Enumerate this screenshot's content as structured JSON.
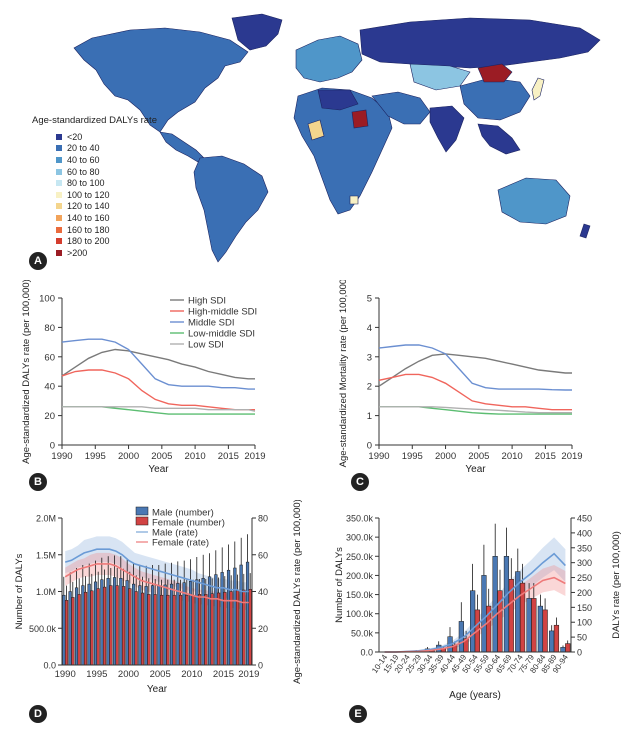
{
  "panels": {
    "A": "A",
    "B": "B",
    "C": "C",
    "D": "D",
    "E": "E"
  },
  "colors": {
    "ocean": "#ffffff",
    "landDark": "#2e3d97",
    "landMid": "#3a6fb4",
    "landLight": "#6fb5dc",
    "landPale": "#a9d7ea",
    "yellow": "#f6df8f",
    "red": "#b5262b",
    "high": "#7a7a7a",
    "highMiddle": "#f0655c",
    "middle": "#6b8fd1",
    "lowMiddle": "#5cbd72",
    "low": "#b0b0b0",
    "maleBar": "#4a78b3",
    "femaleBar": "#d14343",
    "maleRate": "#8fb3dd",
    "femaleRate": "#f08d8d"
  },
  "map_legend": {
    "title": "Age-standardized DALYs rate",
    "items": [
      {
        "label": "<20",
        "color": "#2b3990"
      },
      {
        "label": "20 to 40",
        "color": "#3a6fb4"
      },
      {
        "label": "40 to 60",
        "color": "#4f96c9"
      },
      {
        "label": "60 to 80",
        "color": "#8cc5e2"
      },
      {
        "label": "80 to 100",
        "color": "#c6e7f2"
      },
      {
        "label": "100 to 120",
        "color": "#f8f1c4"
      },
      {
        "label": "120 to 140",
        "color": "#f4d58d"
      },
      {
        "label": "140 to 160",
        "color": "#f2a35a"
      },
      {
        "label": "160 to 180",
        "color": "#ea6b3d"
      },
      {
        "label": "180 to 200",
        "color": "#d43d2e"
      },
      {
        "label": ">200",
        "color": "#9b1c24"
      }
    ]
  },
  "chart_data": [
    {
      "id": "B",
      "type": "line",
      "xlabel": "Year",
      "ylabel": "Age-standardized DALYs rate (per 100,000)",
      "xlim": [
        1990,
        2019
      ],
      "ylim": [
        0,
        100
      ],
      "xticks": [
        1990,
        1995,
        2000,
        2005,
        2010,
        2015,
        2019
      ],
      "yticks": [
        0,
        20,
        40,
        60,
        80,
        100
      ],
      "x": [
        1990,
        1992,
        1994,
        1996,
        1998,
        2000,
        2002,
        2004,
        2006,
        2008,
        2010,
        2012,
        2014,
        2016,
        2018,
        2019
      ],
      "series": [
        {
          "name": "High SDI",
          "color": "#7a7a7a",
          "values": [
            47,
            53,
            59,
            63,
            65,
            64,
            62,
            60,
            58,
            55,
            53,
            50,
            48,
            46,
            45,
            45
          ]
        },
        {
          "name": "High-middle SDI",
          "color": "#f0655c",
          "values": [
            47,
            50,
            51,
            51,
            49,
            45,
            37,
            31,
            28,
            27,
            27,
            26,
            25,
            24,
            24,
            24
          ]
        },
        {
          "name": "Middle SDI",
          "color": "#6b8fd1",
          "values": [
            70,
            71,
            72,
            72,
            70,
            65,
            55,
            45,
            41,
            40,
            40,
            40,
            39,
            39,
            38,
            38
          ]
        },
        {
          "name": "Low-middle SDI",
          "color": "#5cbd72",
          "values": [
            26,
            26,
            26,
            26,
            25,
            24,
            23,
            22,
            21,
            21,
            21,
            21,
            21,
            21,
            21,
            21
          ]
        },
        {
          "name": "Low SDI",
          "color": "#b0b0b0",
          "values": [
            26,
            26,
            26,
            26,
            26,
            26,
            26,
            25,
            25,
            25,
            25,
            24,
            24,
            24,
            24,
            23
          ]
        }
      ]
    },
    {
      "id": "C",
      "type": "line",
      "xlabel": "Year",
      "ylabel": "Age-standardized Mortality rate (per 100,000)",
      "xlim": [
        1990,
        2019
      ],
      "ylim": [
        0,
        5
      ],
      "xticks": [
        1990,
        1995,
        2000,
        2005,
        2010,
        2015,
        2019
      ],
      "yticks": [
        0,
        1,
        2,
        3,
        4,
        5
      ],
      "x": [
        1990,
        1992,
        1994,
        1996,
        1998,
        2000,
        2002,
        2004,
        2006,
        2008,
        2010,
        2012,
        2014,
        2016,
        2018,
        2019
      ],
      "series": [
        {
          "name": "High SDI",
          "color": "#7a7a7a",
          "values": [
            2.0,
            2.3,
            2.6,
            2.85,
            3.05,
            3.1,
            3.05,
            3.0,
            2.95,
            2.85,
            2.75,
            2.65,
            2.55,
            2.5,
            2.45,
            2.45
          ]
        },
        {
          "name": "High-middle SDI",
          "color": "#f0655c",
          "values": [
            2.2,
            2.3,
            2.4,
            2.4,
            2.3,
            2.1,
            1.8,
            1.5,
            1.4,
            1.35,
            1.3,
            1.3,
            1.25,
            1.2,
            1.2,
            1.2
          ]
        },
        {
          "name": "Middle SDI",
          "color": "#6b8fd1",
          "values": [
            3.3,
            3.35,
            3.4,
            3.4,
            3.3,
            3.1,
            2.6,
            2.1,
            1.95,
            1.9,
            1.9,
            1.9,
            1.9,
            1.88,
            1.87,
            1.87
          ]
        },
        {
          "name": "Low-middle SDI",
          "color": "#5cbd72",
          "values": [
            1.3,
            1.3,
            1.3,
            1.3,
            1.25,
            1.2,
            1.15,
            1.1,
            1.07,
            1.05,
            1.05,
            1.05,
            1.05,
            1.05,
            1.05,
            1.05
          ]
        },
        {
          "name": "Low SDI",
          "color": "#b0b0b0",
          "values": [
            1.3,
            1.3,
            1.3,
            1.3,
            1.3,
            1.28,
            1.25,
            1.22,
            1.2,
            1.18,
            1.15,
            1.12,
            1.1,
            1.1,
            1.1,
            1.1
          ]
        }
      ]
    },
    {
      "id": "D",
      "type": "bar",
      "xlabel": "Year",
      "ylabel": "Number of DALYs",
      "y2label": "Age-standardized DALYs rate (per 100,000)",
      "xlim": [
        1990,
        2019
      ],
      "ylim": [
        0,
        2000000
      ],
      "y2lim": [
        0,
        80
      ],
      "yticks": [
        0,
        500000,
        1000000,
        1500000,
        2000000
      ],
      "ytick_labels": [
        "0.0",
        "500.0k",
        "1.0M",
        "1.5M",
        "2.0M"
      ],
      "y2ticks": [
        0,
        20,
        40,
        60,
        80
      ],
      "xticks": [
        1990,
        1995,
        2000,
        2005,
        2010,
        2015,
        2019
      ],
      "years": [
        1990,
        1991,
        1992,
        1993,
        1994,
        1995,
        1996,
        1997,
        1998,
        1999,
        2000,
        2001,
        2002,
        2003,
        2004,
        2005,
        2006,
        2007,
        2008,
        2009,
        2010,
        2011,
        2012,
        2013,
        2014,
        2015,
        2016,
        2017,
        2018,
        2019
      ],
      "legend": [
        "Male (number)",
        "Female (number)",
        "Male (rate)",
        "Female (rate)"
      ],
      "series": [
        {
          "name": "Male (number)",
          "values": [
            950000,
            1000000,
            1050000,
            1080000,
            1100000,
            1130000,
            1160000,
            1180000,
            1190000,
            1180000,
            1150000,
            1100000,
            1080000,
            1070000,
            1080000,
            1080000,
            1090000,
            1100000,
            1110000,
            1120000,
            1140000,
            1160000,
            1180000,
            1200000,
            1230000,
            1260000,
            1290000,
            1320000,
            1360000,
            1400000
          ],
          "err": [
            250000,
            260000,
            270000,
            280000,
            280000,
            290000,
            300000,
            300000,
            300000,
            300000,
            290000,
            280000,
            280000,
            280000,
            280000,
            280000,
            290000,
            290000,
            300000,
            300000,
            300000,
            310000,
            320000,
            320000,
            330000,
            340000,
            350000,
            360000,
            370000,
            380000
          ]
        },
        {
          "name": "Female (number)",
          "values": [
            880000,
            920000,
            960000,
            990000,
            1010000,
            1040000,
            1060000,
            1080000,
            1080000,
            1070000,
            1040000,
            1000000,
            980000,
            960000,
            960000,
            950000,
            950000,
            950000,
            950000,
            950000,
            950000,
            960000,
            960000,
            970000,
            980000,
            990000,
            1000000,
            1010000,
            1020000,
            1030000
          ],
          "err": [
            200000,
            210000,
            220000,
            220000,
            230000,
            230000,
            240000,
            240000,
            240000,
            240000,
            230000,
            220000,
            220000,
            220000,
            210000,
            210000,
            210000,
            210000,
            210000,
            210000,
            210000,
            210000,
            210000,
            210000,
            210000,
            220000,
            220000,
            220000,
            220000,
            220000
          ]
        },
        {
          "name": "Male (rate)",
          "values": [
            56,
            57,
            59,
            61,
            62,
            63,
            63,
            63,
            62,
            60,
            57,
            55,
            54,
            53,
            52,
            51,
            50,
            49,
            48,
            47,
            46,
            45,
            44,
            43,
            42,
            42,
            41,
            41,
            40,
            40
          ],
          "band": [
            6,
            6,
            6,
            7,
            7,
            7,
            7,
            7,
            7,
            7,
            7,
            6,
            6,
            6,
            6,
            6,
            6,
            6,
            6,
            6,
            6,
            5,
            5,
            5,
            5,
            5,
            5,
            5,
            5,
            5
          ]
        },
        {
          "name": "Female (rate)",
          "values": [
            48,
            50,
            52,
            53,
            54,
            55,
            55,
            55,
            54,
            52,
            50,
            48,
            46,
            45,
            44,
            43,
            42,
            41,
            40,
            39,
            38,
            37,
            37,
            36,
            36,
            35,
            35,
            35,
            34,
            34
          ],
          "band": [
            5,
            5,
            5,
            5,
            6,
            6,
            6,
            6,
            6,
            6,
            5,
            5,
            5,
            5,
            5,
            5,
            5,
            5,
            5,
            4,
            4,
            4,
            4,
            4,
            4,
            4,
            4,
            4,
            4,
            4
          ]
        }
      ]
    },
    {
      "id": "E",
      "type": "bar",
      "xlabel": "Age (years)",
      "ylabel": "Number of DALYs",
      "y2label": "DALYs rate (per 100,000)",
      "ylim": [
        0,
        350000
      ],
      "y2lim": [
        0,
        450
      ],
      "yticks": [
        0,
        50000,
        100000,
        150000,
        200000,
        250000,
        300000,
        350000
      ],
      "ytick_labels": [
        "0.0",
        "50.0k",
        "100.0k",
        "150.0k",
        "200.0k",
        "250.0k",
        "300.0k",
        "350.0k"
      ],
      "y2ticks": [
        0,
        50,
        100,
        150,
        200,
        250,
        300,
        350,
        400,
        450
      ],
      "categories": [
        "10-14",
        "15-19",
        "20-24",
        "25-29",
        "30-34",
        "35-39",
        "40-44",
        "45-49",
        "50-54",
        "55-59",
        "60-64",
        "65-69",
        "70-74",
        "75-79",
        "80-84",
        "85-89",
        "90-94"
      ],
      "series": [
        {
          "name": "Male (number)",
          "values": [
            0,
            0,
            1000,
            3000,
            8000,
            18000,
            40000,
            80000,
            160000,
            200000,
            250000,
            250000,
            210000,
            140000,
            120000,
            55000,
            12000
          ],
          "err": [
            0,
            0,
            1000,
            2000,
            5000,
            10000,
            25000,
            50000,
            70000,
            80000,
            85000,
            75000,
            60000,
            40000,
            30000,
            15000,
            5000
          ]
        },
        {
          "name": "Female (number)",
          "values": [
            0,
            0,
            500,
            1500,
            4000,
            9000,
            18000,
            35000,
            110000,
            120000,
            160000,
            190000,
            180000,
            140000,
            110000,
            70000,
            22000
          ],
          "err": [
            0,
            0,
            500,
            1000,
            3000,
            6000,
            10000,
            20000,
            40000,
            45000,
            55000,
            55000,
            50000,
            40000,
            30000,
            20000,
            8000
          ]
        },
        {
          "name": "Male (rate)",
          "values": [
            0,
            0,
            2,
            4,
            8,
            15,
            28,
            50,
            85,
            120,
            160,
            200,
            235,
            265,
            300,
            330,
            290
          ],
          "band": [
            0,
            0,
            1,
            2,
            4,
            6,
            10,
            15,
            22,
            28,
            32,
            36,
            40,
            45,
            50,
            55,
            55
          ]
        },
        {
          "name": "Female (rate)",
          "values": [
            0,
            0,
            1,
            2,
            5,
            10,
            18,
            35,
            65,
            95,
            130,
            160,
            190,
            215,
            240,
            250,
            230
          ],
          "band": [
            0,
            0,
            1,
            1,
            3,
            5,
            8,
            12,
            18,
            22,
            26,
            30,
            33,
            36,
            40,
            42,
            42
          ]
        }
      ]
    }
  ]
}
